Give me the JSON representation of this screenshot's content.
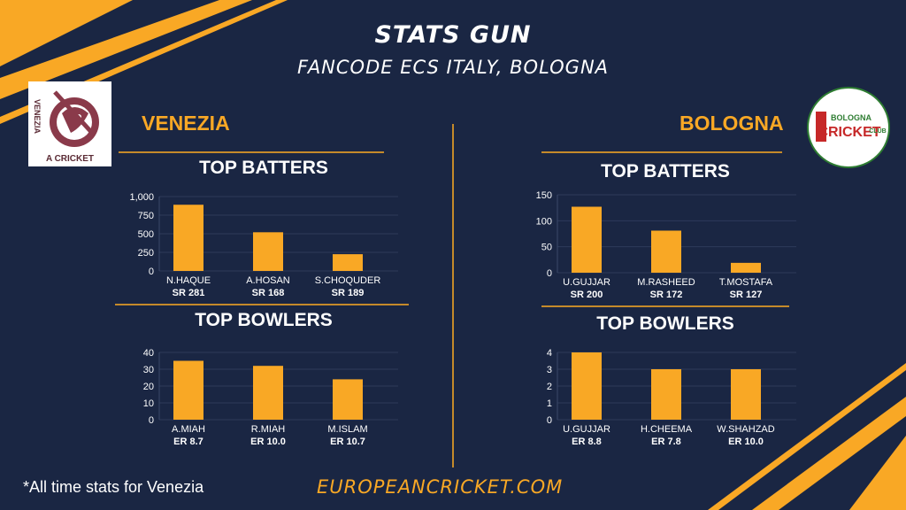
{
  "header": {
    "title": "STATS GUN",
    "subtitle": "FANCODE ECS ITALY, BOLOGNA"
  },
  "teams": {
    "left": {
      "name": "VENEZIA",
      "logo_text": [
        "VENEZIA",
        "A CRICKET"
      ]
    },
    "right": {
      "name": "BOLOGNA",
      "logo_text": [
        "BOLOGNA",
        "CRICKET",
        "CLUB"
      ]
    }
  },
  "sections": {
    "batters": "TOP BATTERS",
    "bowlers": "TOP BOWLERS"
  },
  "footer": {
    "note": "*All time stats for Venezia",
    "site": "EUROPEANCRICKET.COM"
  },
  "colors": {
    "background": "#1a2643",
    "accent": "#f9a825",
    "bar": "#f9a825",
    "text": "#ffffff"
  },
  "chart_data": [
    {
      "type": "bar",
      "team": "VENEZIA",
      "section": "TOP BATTERS",
      "categories": [
        "N.HAQUE",
        "A.HOSAN",
        "S.CHOQUDER"
      ],
      "values": [
        890,
        520,
        225
      ],
      "sublabels": [
        "SR 281",
        "SR 168",
        "SR 189"
      ],
      "yticks": [
        "0",
        "250",
        "500",
        "750",
        "1,000"
      ],
      "ylim": [
        0,
        1000
      ],
      "grid": true
    },
    {
      "type": "bar",
      "team": "VENEZIA",
      "section": "TOP BOWLERS",
      "categories": [
        "A.MIAH",
        "R.MIAH",
        "M.ISLAM"
      ],
      "values": [
        35,
        32,
        24
      ],
      "sublabels": [
        "ER 8.7",
        "ER 10.0",
        "ER 10.7"
      ],
      "yticks": [
        "0",
        "10",
        "20",
        "30",
        "40"
      ],
      "ylim": [
        0,
        40
      ],
      "grid": true
    },
    {
      "type": "bar",
      "team": "BOLOGNA",
      "section": "TOP BATTERS",
      "categories": [
        "U.GUJJAR",
        "M.RASHEED",
        "T.MOSTAFA"
      ],
      "values": [
        127,
        81,
        19
      ],
      "sublabels": [
        "SR 200",
        "SR 172",
        "SR 127"
      ],
      "yticks": [
        "0",
        "50",
        "100",
        "150"
      ],
      "ylim": [
        0,
        150
      ],
      "grid": true
    },
    {
      "type": "bar",
      "team": "BOLOGNA",
      "section": "TOP BOWLERS",
      "categories": [
        "U.GUJJAR",
        "H.CHEEMA",
        "W.SHAHZAD"
      ],
      "values": [
        4,
        3,
        3
      ],
      "sublabels": [
        "ER 8.8",
        "ER 7.8",
        "ER 10.0"
      ],
      "yticks": [
        "0",
        "1",
        "2",
        "3",
        "4"
      ],
      "ylim": [
        0,
        4
      ],
      "grid": true
    }
  ]
}
